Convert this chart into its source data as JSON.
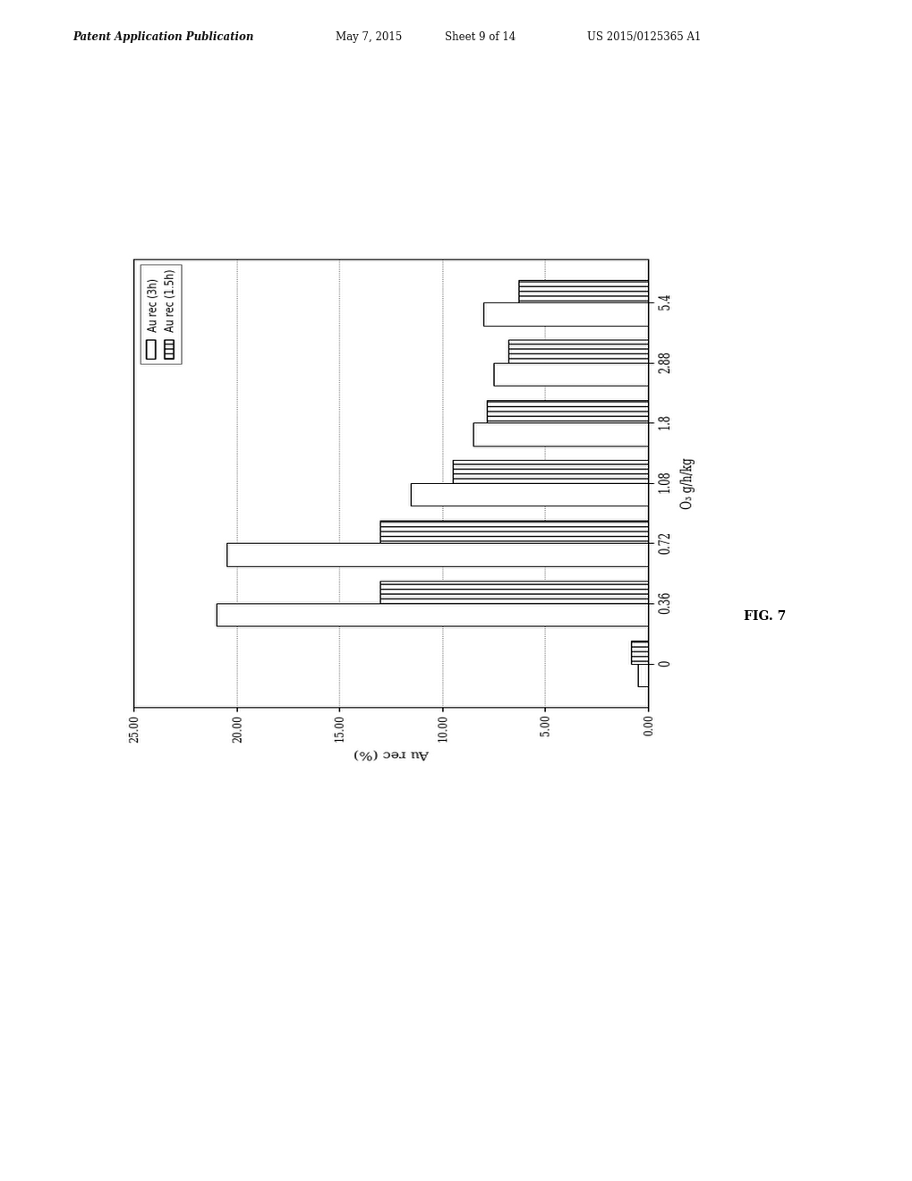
{
  "header_left": "Patent Application Publication",
  "header_mid1": "May 7, 2015",
  "header_mid2": "Sheet 9 of 14",
  "header_right": "US 2015/0125365 A1",
  "categories": [
    "0",
    "0.36",
    "0.72",
    "1.08",
    "1.8",
    "2.88",
    "5.4"
  ],
  "series_3h": [
    0.5,
    21.0,
    20.5,
    11.5,
    8.5,
    7.5,
    8.0
  ],
  "series_15h": [
    0.8,
    13.0,
    13.0,
    9.5,
    7.8,
    6.8,
    6.3
  ],
  "ylim": [
    0,
    25
  ],
  "ytick_vals": [
    0,
    5,
    10,
    15,
    20,
    25
  ],
  "ytick_labels": [
    "0.00",
    "5.00",
    "10.00",
    "15.00",
    "20.00",
    "25.00"
  ],
  "ylabel": "Au rec (%)",
  "xlabel": "O₃ g/h/kg",
  "legend_3h": "Au rec (3h)",
  "legend_15h": "Au rec (1.5h)",
  "fig_label": "FIG. 7",
  "background_color": "#ffffff"
}
